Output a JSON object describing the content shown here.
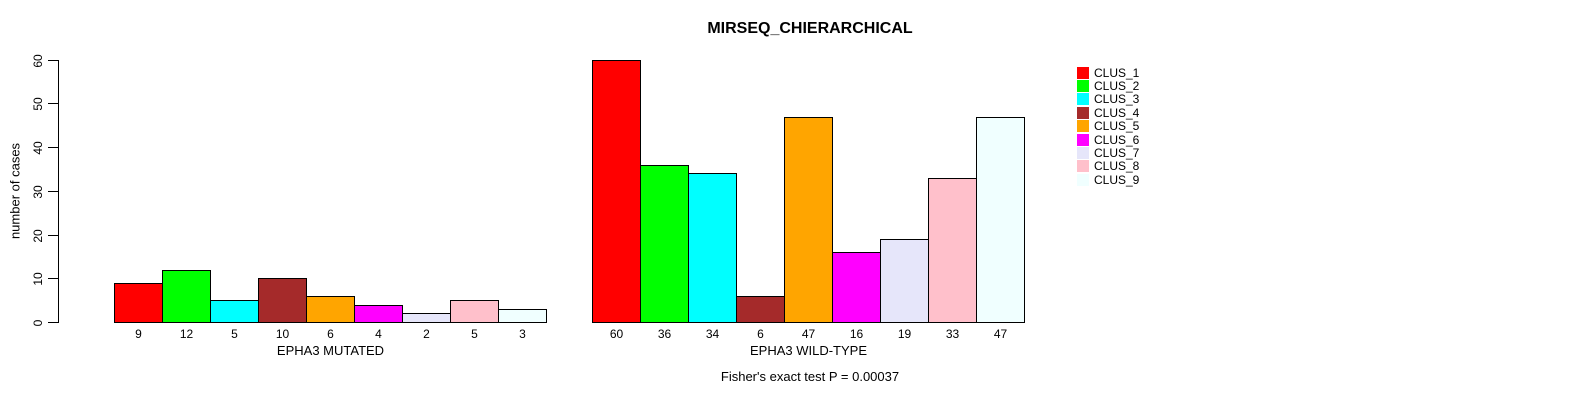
{
  "chart_data": {
    "type": "bar",
    "title": "MIRSEQ_CHIERARCHICAL",
    "ylabel": "number of cases",
    "ylim": [
      0,
      60
    ],
    "yticks": [
      0,
      10,
      20,
      30,
      40,
      50,
      60
    ],
    "grid": false,
    "legend_position": "top-right",
    "series_names": [
      "CLUS_1",
      "CLUS_2",
      "CLUS_3",
      "CLUS_4",
      "CLUS_5",
      "CLUS_6",
      "CLUS_7",
      "CLUS_8",
      "CLUS_9"
    ],
    "series_colors": [
      "#FF0000",
      "#00FF00",
      "#00FFFF",
      "#A52A2A",
      "#FFA500",
      "#FF00FF",
      "#E6E6FA",
      "#FFC0CB",
      "#F0FFFF"
    ],
    "groups": [
      {
        "label": "EPHA3 MUTATED",
        "values": [
          9,
          12,
          5,
          10,
          6,
          4,
          2,
          5,
          3
        ]
      },
      {
        "label": "EPHA3 WILD-TYPE",
        "values": [
          60,
          36,
          34,
          6,
          47,
          16,
          19,
          33,
          47
        ]
      }
    ],
    "bar_value_labels_shown": true,
    "annotation": "Fisher's exact test P = 0.00037"
  }
}
